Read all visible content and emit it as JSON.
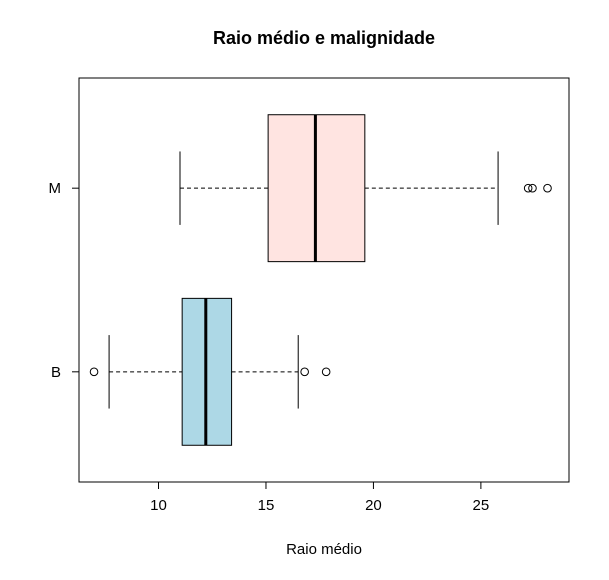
{
  "chart_data": {
    "type": "boxplot",
    "orientation": "horizontal",
    "title": "Raio médio e malignidade",
    "xlabel": "Raio médio",
    "ylabel": "",
    "xlim": [
      6.3,
      29.1
    ],
    "xticks": [
      10,
      15,
      20,
      25
    ],
    "grid": false,
    "legend": "none",
    "categories": [
      "B",
      "M"
    ],
    "boxes": [
      {
        "name": "B",
        "color": "#add8e6",
        "whisker_low": 7.7,
        "q1": 11.1,
        "median": 12.2,
        "q3": 13.4,
        "whisker_high": 16.5,
        "outliers": [
          7.0,
          16.8,
          17.8
        ]
      },
      {
        "name": "M",
        "color": "#ffe4e1",
        "whisker_low": 11.0,
        "q1": 15.1,
        "median": 17.3,
        "q3": 19.6,
        "whisker_high": 25.8,
        "outliers": [
          27.2,
          27.4,
          28.1
        ]
      }
    ]
  }
}
